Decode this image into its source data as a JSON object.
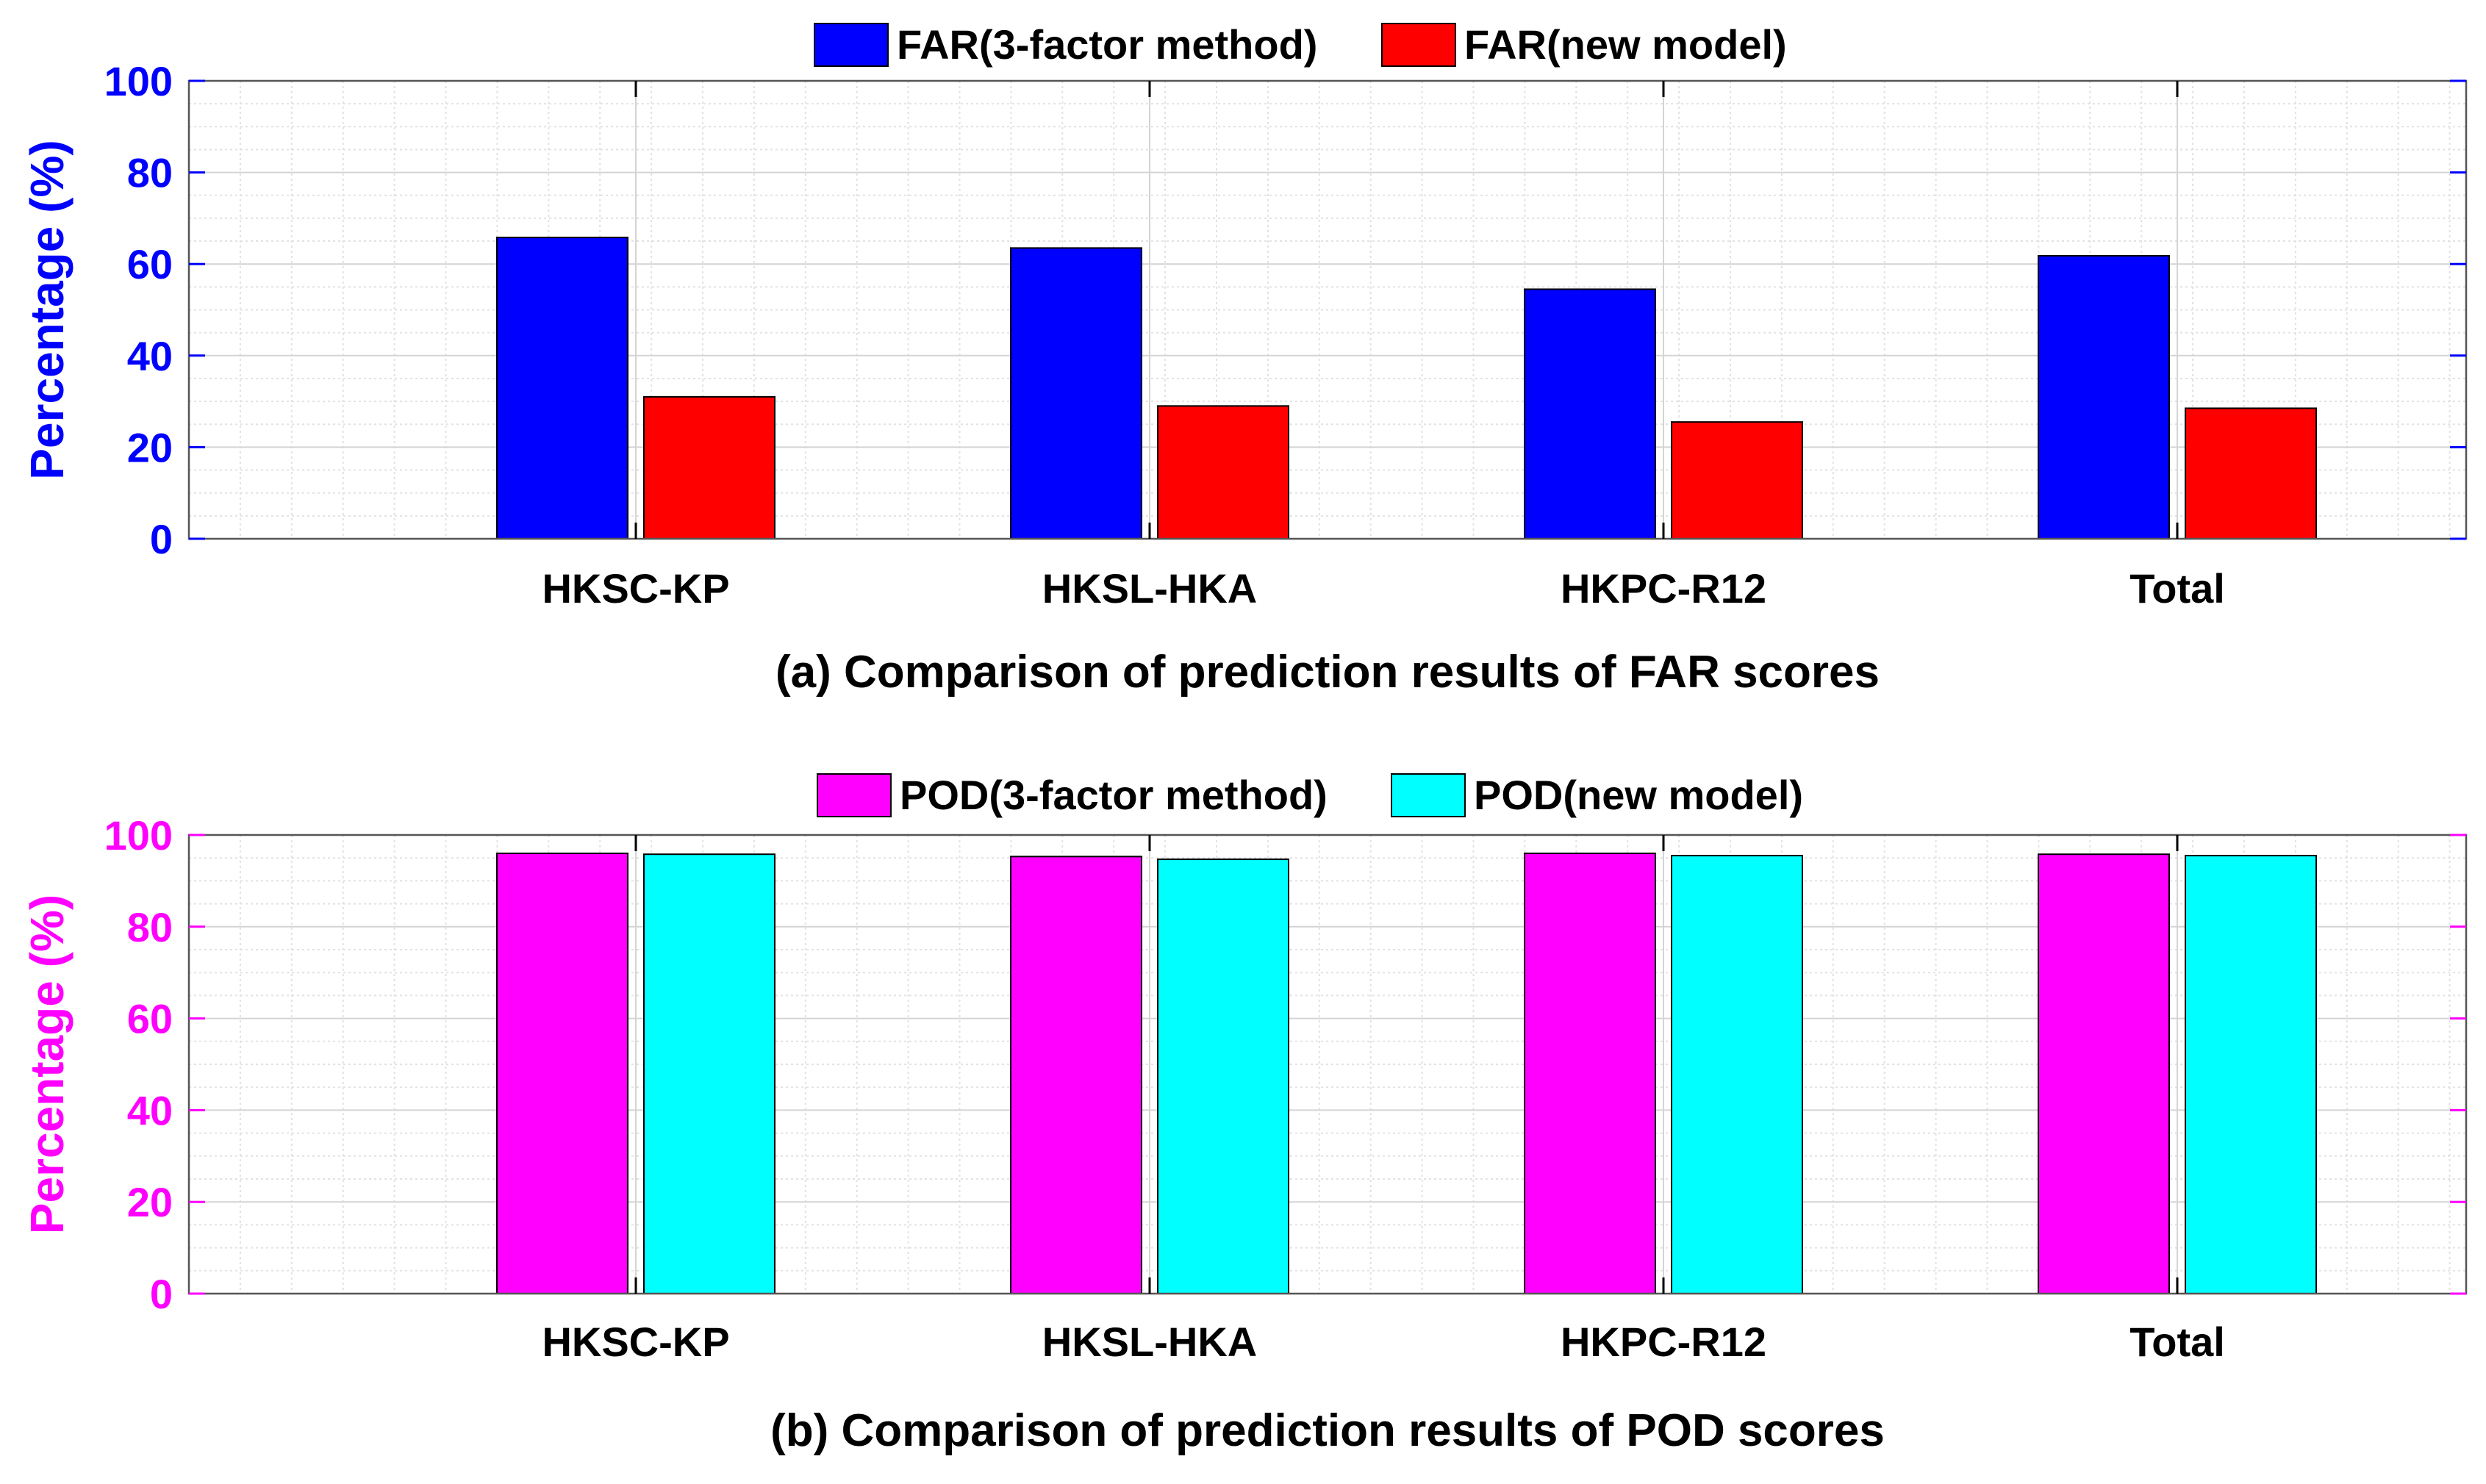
{
  "chart_data": [
    {
      "type": "bar",
      "categories": [
        "HKSC-KP",
        "HKSL-HKA",
        "HKPC-R12",
        "Total"
      ],
      "series": [
        {
          "name": "FAR(3-factor method)",
          "values": [
            65.8,
            63.5,
            54.5,
            61.8
          ],
          "color": "#0000ff"
        },
        {
          "name": "FAR(new model)",
          "values": [
            31.0,
            29.0,
            25.5,
            28.5
          ],
          "color": "#ff0000"
        }
      ],
      "ylabel": "Percentage (%)",
      "ylabel_color": "#0000ff",
      "ylim": [
        0,
        100
      ],
      "yticks": [
        "0",
        "20",
        "40",
        "60",
        "80",
        "100"
      ],
      "caption": "(a) Comparison of prediction results of FAR scores",
      "grid": true,
      "legend_position": "top"
    },
    {
      "type": "bar",
      "categories": [
        "HKSC-KP",
        "HKSL-HKA",
        "HKPC-R12",
        "Total"
      ],
      "series": [
        {
          "name": "POD(3-factor method)",
          "values": [
            96.0,
            95.3,
            96.0,
            95.8
          ],
          "color": "#ff00ff"
        },
        {
          "name": "POD(new model)",
          "values": [
            95.8,
            94.7,
            95.5,
            95.5
          ],
          "color": "#00ffff"
        }
      ],
      "ylabel": "Percentage (%)",
      "ylabel_color": "#ff00ff",
      "ylim": [
        0,
        100
      ],
      "yticks": [
        "0",
        "20",
        "40",
        "60",
        "80",
        "100"
      ],
      "caption": "(b) Comparison of prediction results of POD scores",
      "grid": true,
      "legend_position": "top"
    }
  ]
}
